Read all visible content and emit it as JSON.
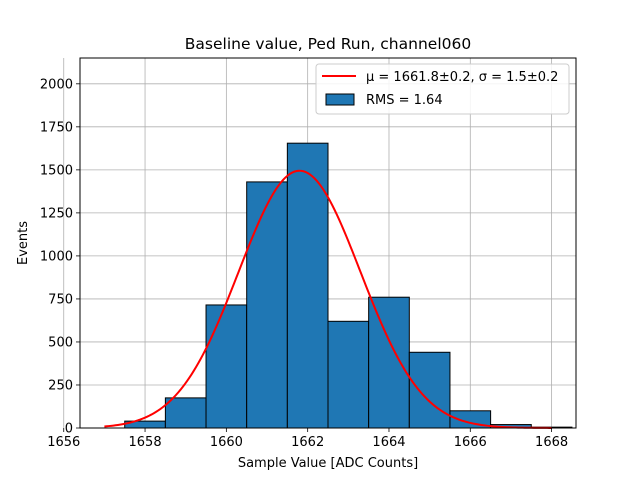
{
  "chart_data": {
    "type": "bar",
    "title": "Baseline value, Ped Run, channel060",
    "xlabel": "Sample Value [ADC Counts]",
    "ylabel": "Events",
    "xlim": [
      1656.4,
      1668.6
    ],
    "ylim": [
      0,
      2150
    ],
    "xticks": [
      "1656",
      "1658",
      "1660",
      "1662",
      "1664",
      "1666",
      "1668"
    ],
    "yticks": [
      "0",
      "250",
      "500",
      "750",
      "1000",
      "1250",
      "1500",
      "1750",
      "2000"
    ],
    "grid": true,
    "legend_position": "top-right",
    "histogram": {
      "name": "RMS = 1.64",
      "color": "#1f77b4",
      "bin_edges": [
        1656.5,
        1657.5,
        1658.5,
        1659.5,
        1660.5,
        1661.5,
        1662.5,
        1663.5,
        1664.5,
        1665.5,
        1666.5,
        1667.5,
        1668.5
      ],
      "counts": [
        0,
        40,
        175,
        715,
        1430,
        1655,
        620,
        760,
        440,
        100,
        20,
        5
      ]
    },
    "fit": {
      "name": "μ = 1661.8±0.2, σ = 1.5±0.2",
      "color": "#ff0000",
      "mu": 1661.8,
      "sigma": 1.5,
      "amplitude": 1495,
      "x_range": [
        1657.0,
        1668.0
      ]
    }
  }
}
